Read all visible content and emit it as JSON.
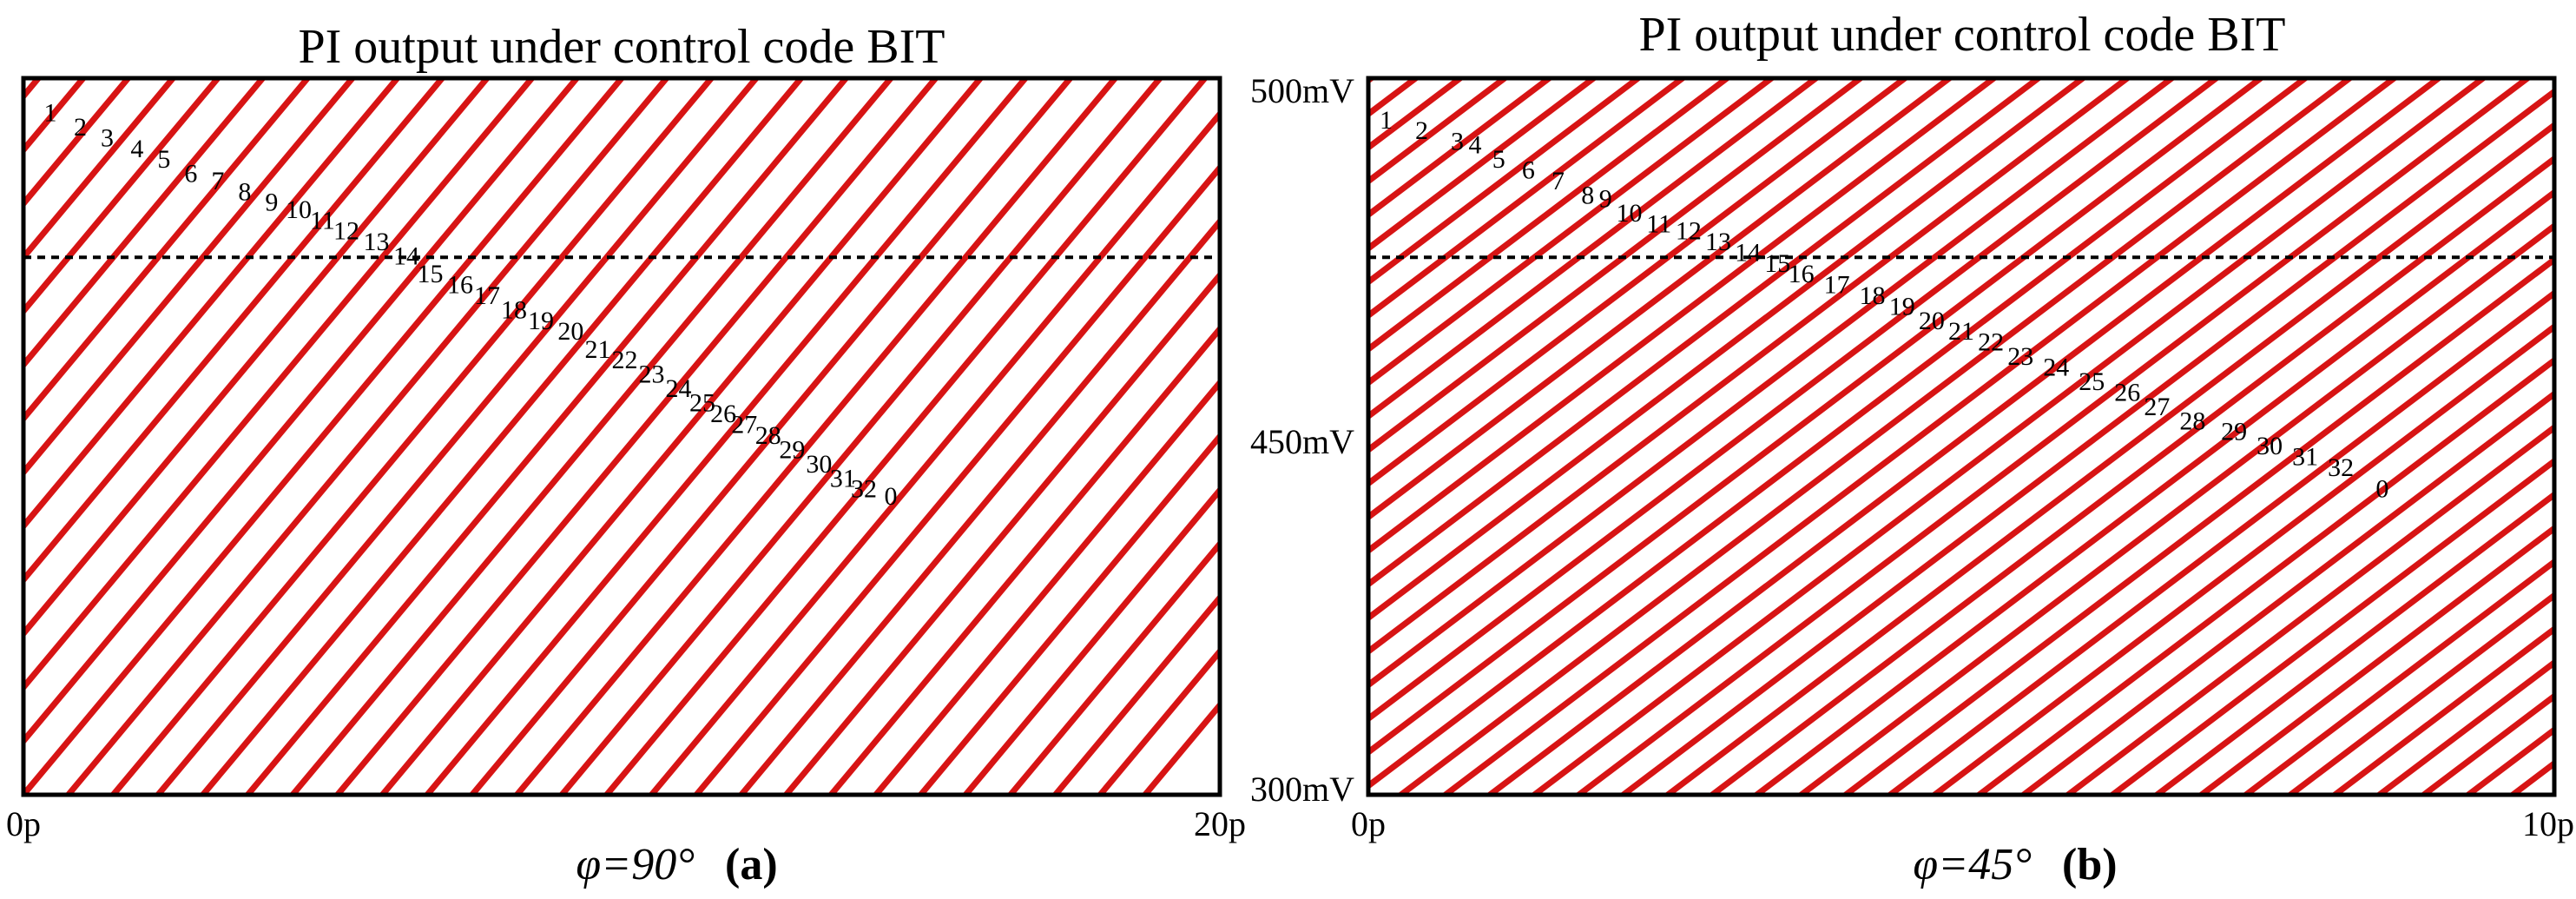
{
  "chart_data": [
    {
      "type": "line",
      "id": "a",
      "title": "PI output under control code BIT",
      "x_ticks": [
        "0p",
        "20p"
      ],
      "xlim": [
        0,
        20
      ],
      "ylim": [
        300,
        500
      ],
      "reference_level_mV": 450,
      "phase_label": "φ=90°",
      "panel_label": "(a)",
      "trace_color": "#d40000",
      "slope_mV_per_ps": 20,
      "trace_count": 48,
      "first_crossing_ps": -16.5,
      "crossing_step_ps": 0.75,
      "code_labels": [
        "1",
        "2",
        "3",
        "4",
        "5",
        "6",
        "7",
        "8",
        "9",
        "10",
        "11",
        "12",
        "13",
        "14",
        "15",
        "16",
        "17",
        "18",
        "19",
        "20",
        "21",
        "22",
        "23",
        "24",
        "25",
        "26",
        "27",
        "28",
        "29",
        "30",
        "31",
        "32",
        "0"
      ],
      "code_label_points": [
        {
          "x": 0.45,
          "y": 488
        },
        {
          "x": 0.95,
          "y": 484
        },
        {
          "x": 1.4,
          "y": 481
        },
        {
          "x": 1.9,
          "y": 478
        },
        {
          "x": 2.35,
          "y": 475
        },
        {
          "x": 2.8,
          "y": 471
        },
        {
          "x": 3.25,
          "y": 469
        },
        {
          "x": 3.7,
          "y": 466
        },
        {
          "x": 4.15,
          "y": 463
        },
        {
          "x": 4.6,
          "y": 461
        },
        {
          "x": 5.0,
          "y": 458
        },
        {
          "x": 5.4,
          "y": 455
        },
        {
          "x": 5.9,
          "y": 452
        },
        {
          "x": 6.4,
          "y": 448
        },
        {
          "x": 6.8,
          "y": 443
        },
        {
          "x": 7.3,
          "y": 440
        },
        {
          "x": 7.75,
          "y": 437
        },
        {
          "x": 8.2,
          "y": 433
        },
        {
          "x": 8.65,
          "y": 430
        },
        {
          "x": 9.15,
          "y": 427
        },
        {
          "x": 9.6,
          "y": 422
        },
        {
          "x": 10.05,
          "y": 419
        },
        {
          "x": 10.5,
          "y": 415
        },
        {
          "x": 10.95,
          "y": 411
        },
        {
          "x": 11.35,
          "y": 407
        },
        {
          "x": 11.7,
          "y": 404
        },
        {
          "x": 12.05,
          "y": 401
        },
        {
          "x": 12.45,
          "y": 398
        },
        {
          "x": 12.85,
          "y": 394
        },
        {
          "x": 13.3,
          "y": 390
        },
        {
          "x": 13.7,
          "y": 386
        },
        {
          "x": 14.05,
          "y": 383
        },
        {
          "x": 14.5,
          "y": 381
        }
      ]
    },
    {
      "type": "line",
      "id": "b",
      "title": "PI output under control code BIT",
      "x_ticks": [
        "0p",
        "10p"
      ],
      "y_ticks": [
        "500mV",
        "450mV",
        "300mV"
      ],
      "xlim": [
        0,
        10
      ],
      "ylim": [
        300,
        500
      ],
      "reference_level_mV": 450,
      "phase_label": "φ=45°",
      "panel_label": "(b)",
      "trace_color": "#d40000",
      "slope_mV_per_ps": 25,
      "trace_count": 66,
      "first_crossing_ps": -13.6,
      "crossing_step_ps": 0.375,
      "code_labels": [
        "1",
        "2",
        "3",
        "4",
        "5",
        "6",
        "7",
        "8",
        "9",
        "10",
        "11",
        "12",
        "13",
        "14",
        "15",
        "16",
        "17",
        "18",
        "19",
        "20",
        "21",
        "22",
        "23",
        "24",
        "25",
        "26",
        "27",
        "28",
        "29",
        "30",
        "31",
        "32",
        "0"
      ],
      "code_label_points": [
        {
          "x": 0.15,
          "y": 486
        },
        {
          "x": 0.45,
          "y": 483
        },
        {
          "x": 0.75,
          "y": 480
        },
        {
          "x": 0.9,
          "y": 479
        },
        {
          "x": 1.1,
          "y": 475
        },
        {
          "x": 1.35,
          "y": 472
        },
        {
          "x": 1.6,
          "y": 469
        },
        {
          "x": 1.85,
          "y": 465
        },
        {
          "x": 2.0,
          "y": 464
        },
        {
          "x": 2.2,
          "y": 460
        },
        {
          "x": 2.45,
          "y": 457
        },
        {
          "x": 2.7,
          "y": 455
        },
        {
          "x": 2.95,
          "y": 452
        },
        {
          "x": 3.2,
          "y": 449
        },
        {
          "x": 3.45,
          "y": 446
        },
        {
          "x": 3.65,
          "y": 443
        },
        {
          "x": 3.95,
          "y": 440
        },
        {
          "x": 4.25,
          "y": 437
        },
        {
          "x": 4.5,
          "y": 434
        },
        {
          "x": 4.75,
          "y": 430
        },
        {
          "x": 5.0,
          "y": 427
        },
        {
          "x": 5.25,
          "y": 424
        },
        {
          "x": 5.5,
          "y": 420
        },
        {
          "x": 5.8,
          "y": 417
        },
        {
          "x": 6.1,
          "y": 413
        },
        {
          "x": 6.4,
          "y": 410
        },
        {
          "x": 6.65,
          "y": 406
        },
        {
          "x": 6.95,
          "y": 402
        },
        {
          "x": 7.3,
          "y": 399
        },
        {
          "x": 7.6,
          "y": 395
        },
        {
          "x": 7.9,
          "y": 392
        },
        {
          "x": 8.2,
          "y": 389
        },
        {
          "x": 8.55,
          "y": 383
        }
      ]
    }
  ]
}
